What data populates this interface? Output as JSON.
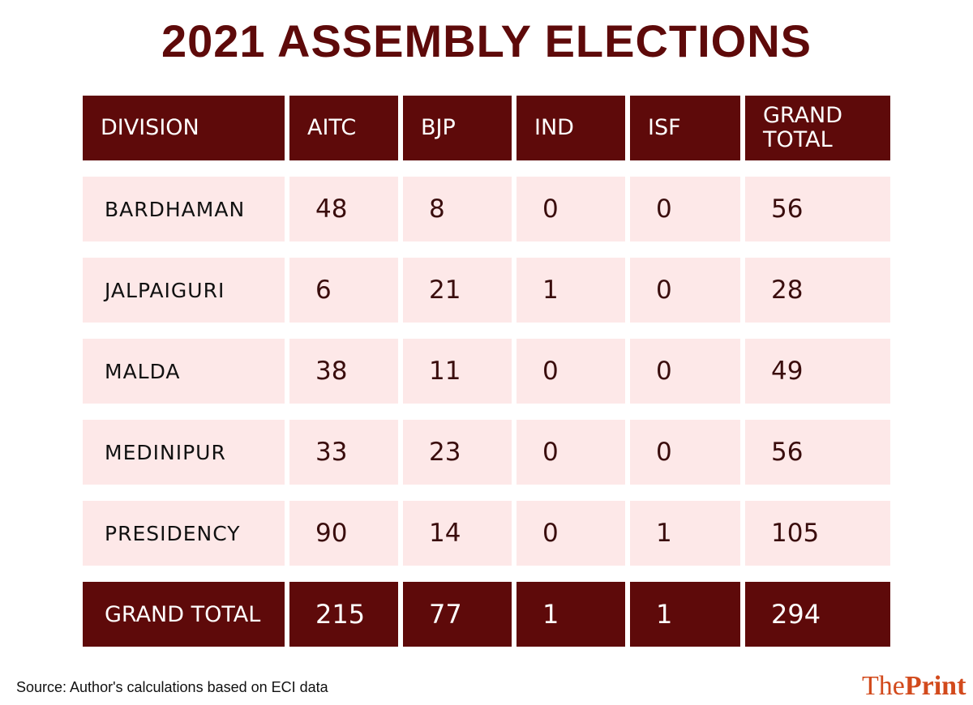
{
  "title": "2021 ASSEMBLY ELECTIONS",
  "headers": [
    "DIVISION",
    "AITC",
    "BJP",
    "IND",
    "ISF",
    "GRAND TOTAL"
  ],
  "rows": [
    [
      "BARDHAMAN",
      "48",
      "8",
      "0",
      "0",
      "56"
    ],
    [
      "JALPAIGURI",
      "6",
      "21",
      "1",
      "0",
      "28"
    ],
    [
      "MALDA",
      "38",
      "11",
      "0",
      "0",
      "49"
    ],
    [
      "MEDINIPUR",
      "33",
      "23",
      "0",
      "0",
      "56"
    ],
    [
      "PRESIDENCY",
      "90",
      "14",
      "0",
      "1",
      "105"
    ]
  ],
  "total": [
    "GRAND TOTAL",
    "215",
    "77",
    "1",
    "1",
    "294"
  ],
  "source": "Source: Author's calculations based on ECI data",
  "logo": {
    "part1": "The",
    "part2": "Print"
  },
  "colors": {
    "header": "#5e0a0a",
    "row": "#fde8e8",
    "logo": "#d24a1c"
  }
}
